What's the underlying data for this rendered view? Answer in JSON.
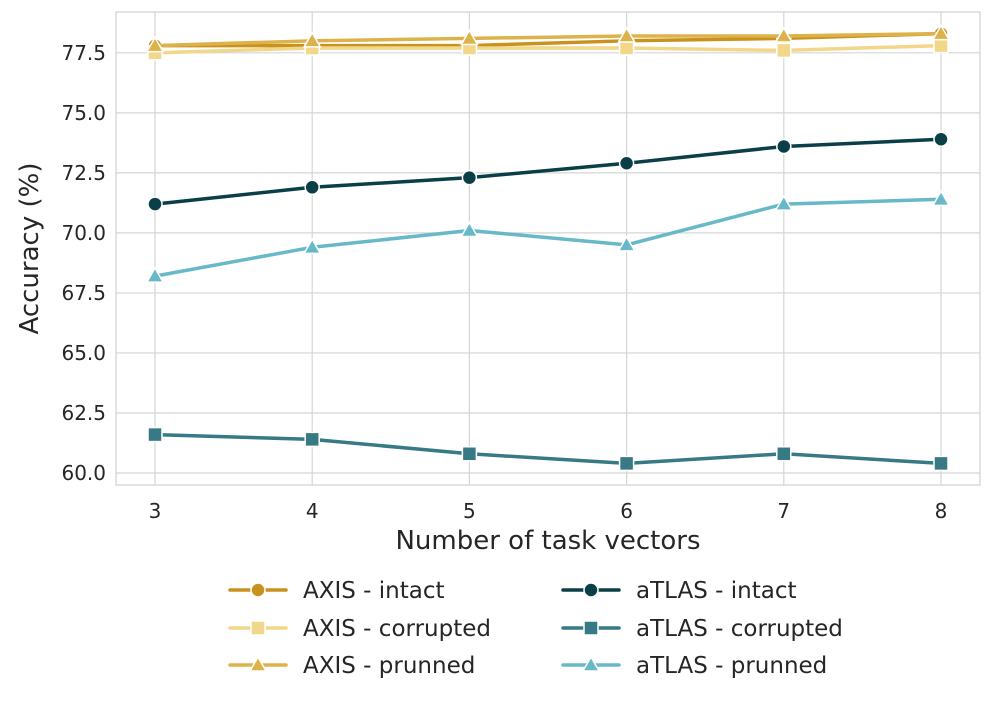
{
  "chart_data": {
    "type": "line",
    "title": "",
    "xlabel": "Number of task vectors",
    "ylabel": "Accuracy (%)",
    "x": [
      3,
      4,
      5,
      6,
      7,
      8
    ],
    "xticks": [
      "3",
      "4",
      "5",
      "6",
      "7",
      "8"
    ],
    "ylim": [
      59.5,
      79.2
    ],
    "yticks": [
      "60.0",
      "62.5",
      "65.0",
      "67.5",
      "70.0",
      "72.5",
      "75.0",
      "77.5"
    ],
    "ytick_values": [
      60.0,
      62.5,
      65.0,
      67.5,
      70.0,
      72.5,
      75.0,
      77.5
    ],
    "grid": true,
    "legend_position": "bottom",
    "series": [
      {
        "name": "AXIS - intact",
        "color": "#C9921E",
        "marker": "circle",
        "values": [
          77.8,
          77.8,
          77.8,
          78.0,
          78.1,
          78.3
        ]
      },
      {
        "name": "AXIS - corrupted",
        "color": "#F2D68A",
        "marker": "square",
        "values": [
          77.5,
          77.7,
          77.7,
          77.7,
          77.6,
          77.8
        ]
      },
      {
        "name": "AXIS - prunned",
        "color": "#DDB24A",
        "marker": "triangle",
        "values": [
          77.8,
          78.0,
          78.1,
          78.2,
          78.2,
          78.3
        ]
      },
      {
        "name": "aTLAS - intact",
        "color": "#0B3F47",
        "marker": "circle",
        "values": [
          71.2,
          71.9,
          72.3,
          72.9,
          73.6,
          73.9
        ]
      },
      {
        "name": "aTLAS - corrupted",
        "color": "#377A85",
        "marker": "square",
        "values": [
          61.6,
          61.4,
          60.8,
          60.4,
          60.8,
          60.4
        ]
      },
      {
        "name": "aTLAS - prunned",
        "color": "#67B9C8",
        "marker": "triangle",
        "values": [
          68.2,
          69.4,
          70.1,
          69.5,
          71.2,
          71.4
        ]
      }
    ]
  }
}
